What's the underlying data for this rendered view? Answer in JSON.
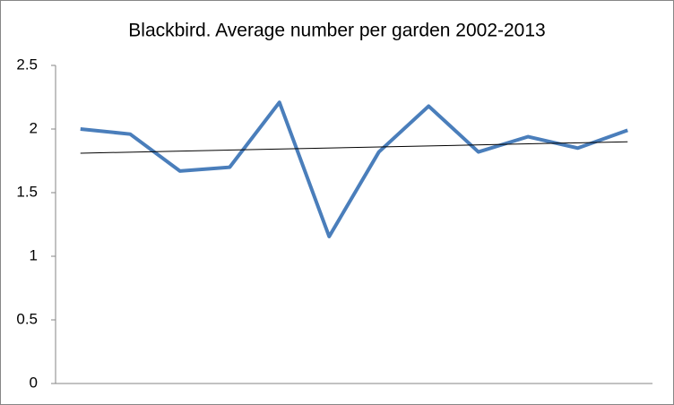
{
  "chart_data": {
    "type": "line",
    "title": "Blackbird. Average number per garden 2002-2013",
    "categories": [
      null,
      null,
      null,
      null,
      null,
      null,
      null,
      null,
      null,
      null,
      null,
      null
    ],
    "series": [
      {
        "color": "#4a7ebb",
        "values": [
          2.0,
          1.96,
          1.67,
          1.7,
          2.21,
          1.155,
          1.82,
          2.18,
          1.82,
          1.94,
          1.85,
          1.99
        ]
      }
    ],
    "trendline": {
      "color": "#000000",
      "values": [
        1.81,
        1.9
      ]
    },
    "ylim": [
      0,
      2.5
    ],
    "yticks": [
      0,
      0.5,
      1,
      1.5,
      2,
      2.5
    ],
    "grid": false
  }
}
